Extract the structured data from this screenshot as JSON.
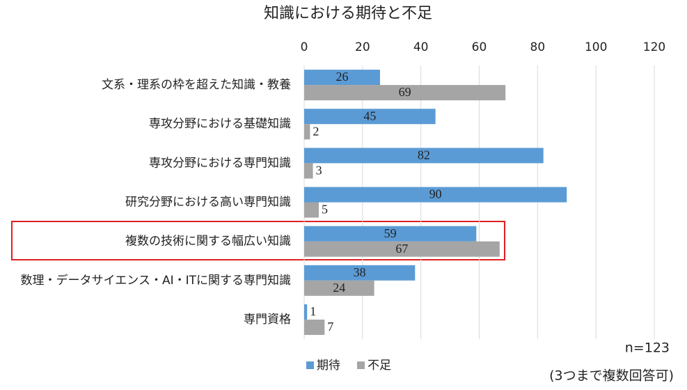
{
  "chart_data": {
    "type": "hbar",
    "title": "知識における期待と不足",
    "categories": [
      "文系・理系の枠を超えた知識・教養",
      "専攻分野における基礎知識",
      "専攻分野における専門知識",
      "研究分野における高い専門知識",
      "複数の技術に関する幅広い知識",
      "数理・データサイエンス・AI・ITに関する専門知識",
      "専門資格"
    ],
    "series": [
      {
        "name": "期待",
        "color": "#5b9bd5",
        "values": [
          26,
          45,
          82,
          90,
          59,
          38,
          1
        ]
      },
      {
        "name": "不足",
        "color": "#a5a5a5",
        "values": [
          69,
          2,
          3,
          5,
          67,
          24,
          7
        ]
      }
    ],
    "xlim": [
      0,
      120
    ],
    "xticks": [
      0,
      20,
      40,
      60,
      80,
      100,
      120
    ],
    "grid": true,
    "annotations": [
      "n=123",
      "(3つまで複数回答可)"
    ]
  }
}
